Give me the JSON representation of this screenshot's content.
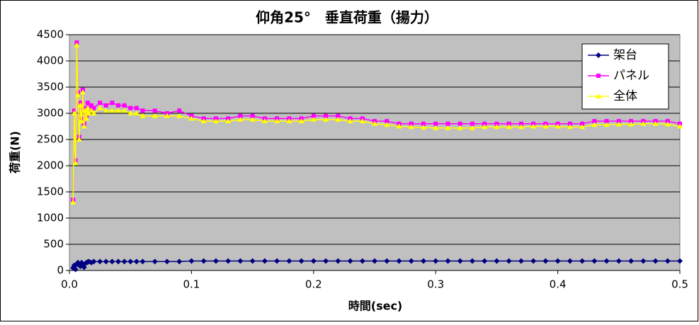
{
  "chart_data": {
    "type": "line",
    "title": "仰角25°　垂直荷重（揚力）",
    "xlabel": "時間(sec)",
    "ylabel": "荷重(N)",
    "xlim": [
      0,
      0.5
    ],
    "ylim": [
      0,
      4500
    ],
    "xticks": [
      {
        "value": 0,
        "label": "0.0"
      },
      0.1,
      0.2,
      0.3,
      0.4,
      0.5
    ],
    "yticks": [
      0,
      500,
      1000,
      1500,
      2000,
      2500,
      3000,
      3500,
      4000,
      4500
    ],
    "grid": true,
    "legend": "upper right",
    "x": [
      0.003,
      0.004,
      0.005,
      0.006,
      0.007,
      0.008,
      0.009,
      0.01,
      0.011,
      0.012,
      0.013,
      0.014,
      0.015,
      0.016,
      0.018,
      0.02,
      0.025,
      0.03,
      0.035,
      0.04,
      0.045,
      0.05,
      0.055,
      0.06,
      0.07,
      0.08,
      0.09,
      0.1,
      0.11,
      0.12,
      0.13,
      0.14,
      0.15,
      0.16,
      0.17,
      0.18,
      0.19,
      0.2,
      0.21,
      0.22,
      0.23,
      0.24,
      0.25,
      0.26,
      0.27,
      0.28,
      0.29,
      0.3,
      0.31,
      0.32,
      0.33,
      0.34,
      0.35,
      0.36,
      0.37,
      0.38,
      0.39,
      0.4,
      0.41,
      0.42,
      0.43,
      0.44,
      0.45,
      0.46,
      0.47,
      0.48,
      0.49,
      0.5
    ],
    "series": [
      {
        "name": "架台",
        "color": "#000080",
        "marker": "diamond",
        "values": [
          50,
          100,
          20,
          120,
          150,
          100,
          80,
          150,
          120,
          60,
          130,
          150,
          160,
          170,
          150,
          170,
          170,
          170,
          170,
          170,
          170,
          170,
          170,
          170,
          170,
          170,
          170,
          180,
          180,
          180,
          180,
          180,
          180,
          180,
          180,
          180,
          180,
          180,
          180,
          180,
          180,
          180,
          180,
          180,
          180,
          180,
          180,
          180,
          180,
          180,
          180,
          180,
          180,
          180,
          180,
          180,
          180,
          180,
          180,
          180,
          180,
          180,
          180,
          180,
          180,
          180,
          180,
          180
        ]
      },
      {
        "name": "パネル",
        "color": "#ff00ff",
        "marker": "square",
        "values": [
          1350,
          3050,
          2100,
          4350,
          3400,
          2550,
          3200,
          2900,
          3450,
          2800,
          3100,
          2950,
          3200,
          3050,
          3150,
          3100,
          3200,
          3150,
          3200,
          3150,
          3150,
          3100,
          3100,
          3050,
          3050,
          3000,
          3050,
          2950,
          2900,
          2900,
          2900,
          2950,
          2950,
          2900,
          2900,
          2900,
          2900,
          2950,
          2950,
          2950,
          2900,
          2900,
          2850,
          2850,
          2800,
          2800,
          2800,
          2800,
          2800,
          2800,
          2800,
          2800,
          2800,
          2800,
          2800,
          2800,
          2800,
          2800,
          2800,
          2800,
          2850,
          2850,
          2850,
          2850,
          2850,
          2850,
          2850,
          2800
        ]
      },
      {
        "name": "全体",
        "color": "#ffff00",
        "marker": "triangle",
        "values": [
          1300,
          3000,
          2050,
          4300,
          3350,
          2500,
          3150,
          2850,
          3400,
          2750,
          3050,
          2900,
          3100,
          3000,
          3050,
          3000,
          3100,
          3050,
          3050,
          3050,
          3050,
          3000,
          3000,
          2950,
          2950,
          2950,
          2950,
          2900,
          2850,
          2850,
          2850,
          2880,
          2880,
          2850,
          2850,
          2850,
          2850,
          2880,
          2880,
          2880,
          2850,
          2850,
          2800,
          2780,
          2750,
          2740,
          2730,
          2720,
          2720,
          2720,
          2720,
          2740,
          2740,
          2740,
          2740,
          2750,
          2750,
          2750,
          2740,
          2740,
          2780,
          2780,
          2790,
          2790,
          2800,
          2800,
          2790,
          2750
        ]
      }
    ]
  }
}
